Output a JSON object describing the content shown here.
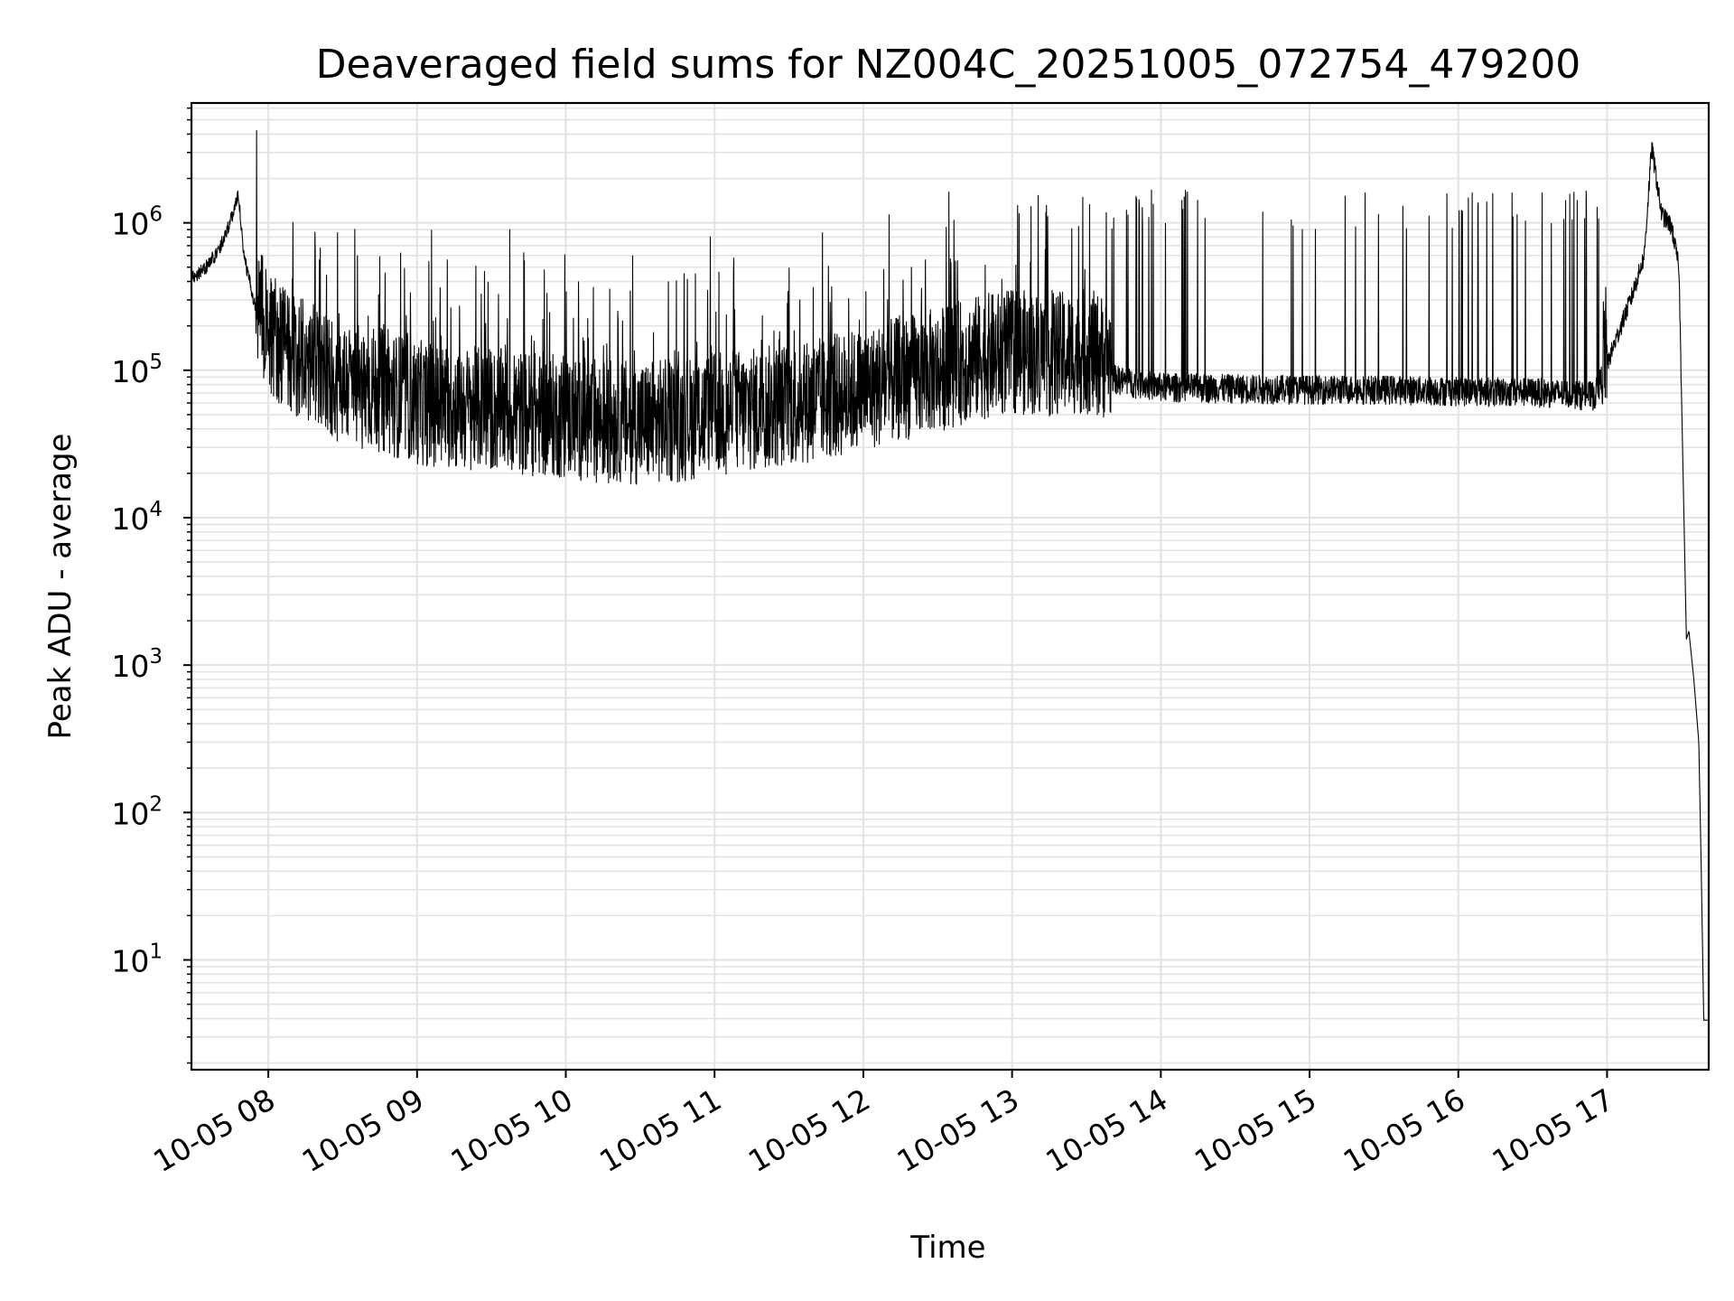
{
  "chart_data": {
    "type": "line",
    "title": "Deaveraged field sums for NZ004C_20251005_072754_479200",
    "xlabel": "Time",
    "ylabel": "Peak ADU - average",
    "yscale": "log",
    "xlim": [
      "10-05 07:29",
      "10-05 17:41"
    ],
    "ylim": [
      1.8,
      6500000
    ],
    "grid": true,
    "legend": "none",
    "x_ticks": [
      "10-05 08",
      "10-05 09",
      "10-05 10",
      "10-05 11",
      "10-05 12",
      "10-05 13",
      "10-05 14",
      "10-05 15",
      "10-05 16",
      "10-05 17"
    ],
    "y_ticks": [
      {
        "base": "10",
        "exp": "1"
      },
      {
        "base": "10",
        "exp": "2"
      },
      {
        "base": "10",
        "exp": "3"
      },
      {
        "base": "10",
        "exp": "4"
      },
      {
        "base": "10",
        "exp": "5"
      },
      {
        "base": "10",
        "exp": "6"
      }
    ],
    "series": [
      {
        "color": "#000000",
        "points": [
          [
            "10-05 07:29",
            420000
          ],
          [
            "10-05 07:35",
            500000
          ],
          [
            "10-05 07:40",
            650000
          ],
          [
            "10-05 07:45",
            1050000
          ],
          [
            "10-05 07:48",
            1550000
          ],
          [
            "10-05 07:50",
            600000
          ],
          [
            "10-05 07:55",
            260000
          ],
          [
            "10-05 08:00",
            140000
          ],
          [
            "10-05 08:10",
            95000
          ],
          [
            "10-05 08:20",
            75000
          ],
          [
            "10-05 08:30",
            62000
          ],
          [
            "10-05 08:45",
            55000
          ],
          [
            "10-05 09:00",
            45000
          ],
          [
            "10-05 09:15",
            42000
          ],
          [
            "10-05 09:30",
            40000
          ],
          [
            "10-05 09:45",
            38000
          ],
          [
            "10-05 10:00",
            36000
          ],
          [
            "10-05 10:15",
            34000
          ],
          [
            "10-05 10:30",
            33000
          ],
          [
            "10-05 10:45",
            34000
          ],
          [
            "10-05 11:00",
            38000
          ],
          [
            "10-05 11:15",
            40000
          ],
          [
            "10-05 11:30",
            44000
          ],
          [
            "10-05 11:45",
            48000
          ],
          [
            "10-05 12:00",
            55000
          ],
          [
            "10-05 12:15",
            65000
          ],
          [
            "10-05 12:30",
            75000
          ],
          [
            "10-05 12:45",
            90000
          ],
          [
            "10-05 13:00",
            100000
          ],
          [
            "10-05 13:15",
            95000
          ],
          [
            "10-05 13:30",
            100000
          ],
          [
            "10-05 13:45",
            85000
          ],
          [
            "10-05 14:00",
            78000
          ],
          [
            "10-05 14:30",
            76000
          ],
          [
            "10-05 15:00",
            75000
          ],
          [
            "10-05 15:30",
            75000
          ],
          [
            "10-05 16:00",
            73000
          ],
          [
            "10-05 16:30",
            72000
          ],
          [
            "10-05 16:55",
            68000
          ],
          [
            "10-05 17:00",
            110000
          ],
          [
            "10-05 17:10",
            320000
          ],
          [
            "10-05 17:15",
            600000
          ],
          [
            "10-05 17:18",
            3300000
          ],
          [
            "10-05 17:22",
            1150000
          ],
          [
            "10-05 17:26",
            950000
          ],
          [
            "10-05 17:29",
            500000
          ],
          [
            "10-05 17:32",
            1500
          ],
          [
            "10-05 17:33",
            1700
          ],
          [
            "10-05 17:35",
            800
          ],
          [
            "10-05 17:37",
            300
          ],
          [
            "10-05 17:38",
            40
          ],
          [
            "10-05 17:39",
            3.9
          ],
          [
            "10-05 17:41",
            3.9
          ]
        ]
      }
    ]
  }
}
